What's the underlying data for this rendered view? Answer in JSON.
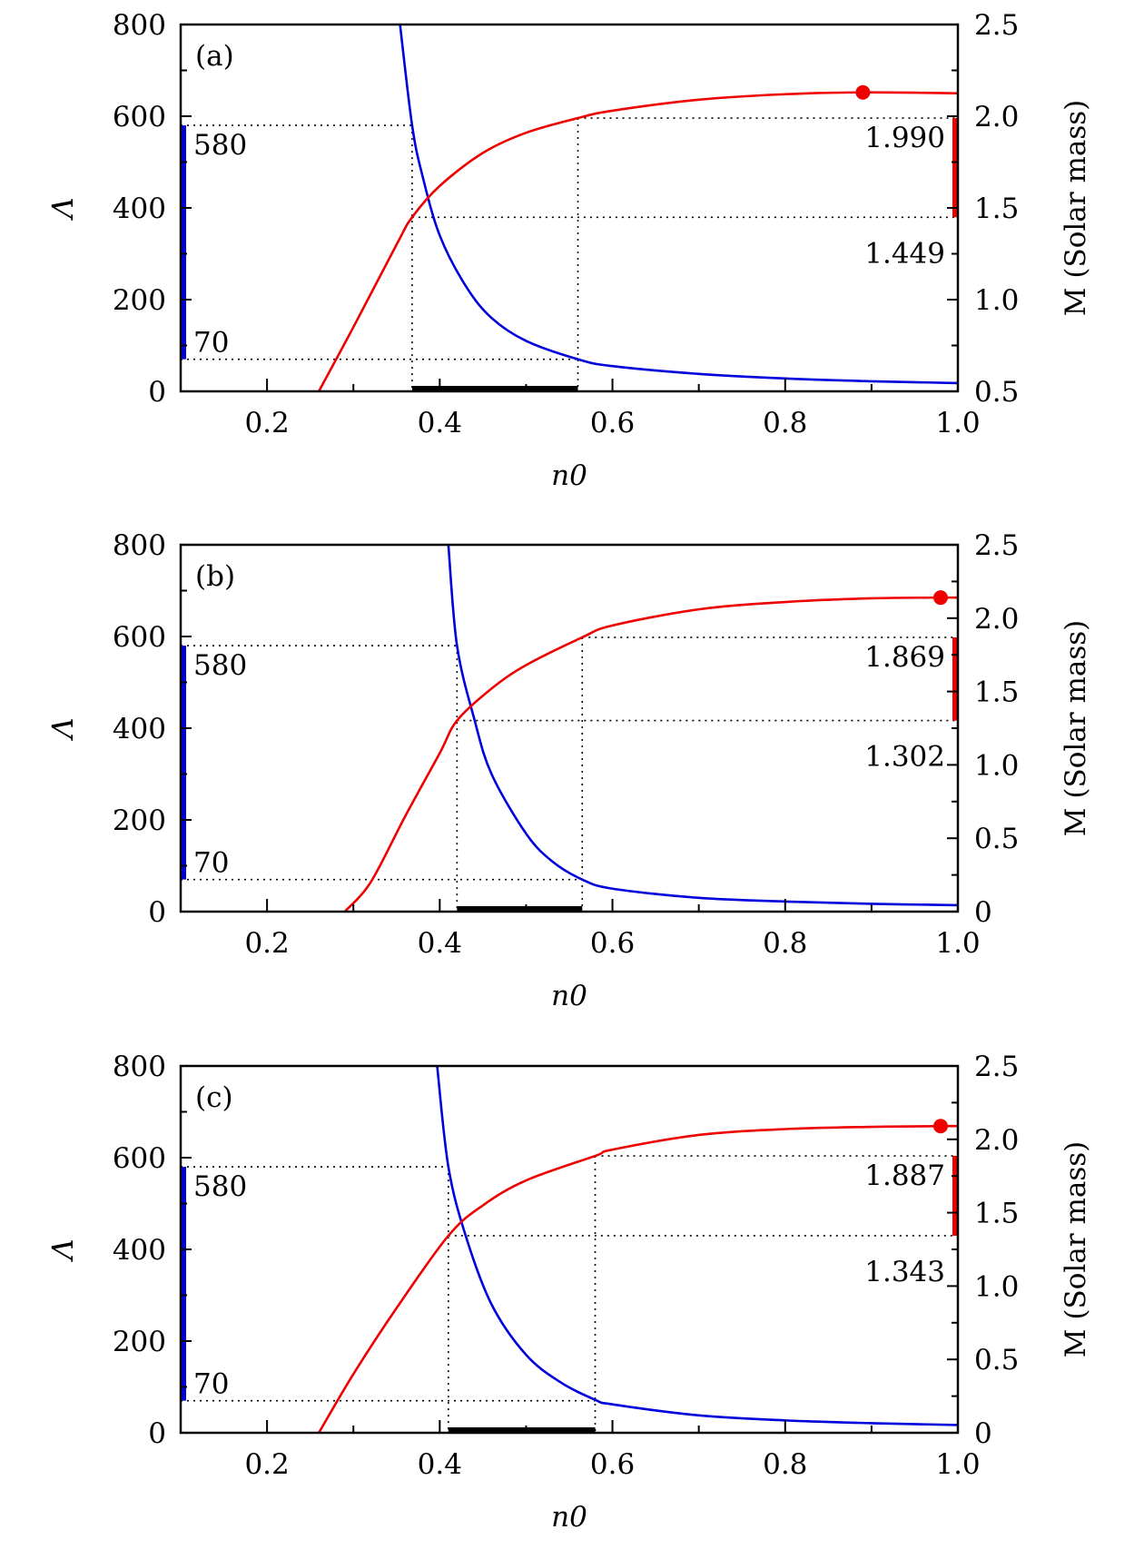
{
  "chart_data": [
    {
      "type": "line",
      "panel_label": "(a)",
      "xlabel": "n0",
      "ylabel_left": "Λ",
      "ylabel_right": "M (Solar mass)",
      "xlim": [
        0.1,
        1.0
      ],
      "ylim_left": [
        0,
        800
      ],
      "ylim_right": [
        0.5,
        2.5
      ],
      "xticks": [
        "0.2",
        "0.4",
        "0.6",
        "0.8",
        "1.0"
      ],
      "yticks_left": [
        "0",
        "200",
        "400",
        "600",
        "800"
      ],
      "yticks_right": [
        "0.5",
        "1.0",
        "1.5",
        "2.0",
        "2.5"
      ],
      "series": [
        {
          "name": "Λ",
          "axis": "left",
          "color": "#0000dd",
          "x": [
            0.354,
            0.368,
            0.38,
            0.4,
            0.43,
            0.46,
            0.5,
            0.56,
            0.6,
            0.7,
            0.8,
            0.9,
            1.0
          ],
          "y": [
            800,
            580,
            470,
            340,
            230,
            160,
            110,
            70,
            55,
            38,
            28,
            22,
            18
          ]
        },
        {
          "name": "M",
          "axis": "right",
          "color": "#ee0000",
          "x": [
            0.26,
            0.3,
            0.35,
            0.368,
            0.4,
            0.45,
            0.5,
            0.56,
            0.6,
            0.7,
            0.8,
            0.89,
            1.0
          ],
          "y": [
            0.5,
            0.85,
            1.3,
            1.449,
            1.62,
            1.8,
            1.91,
            1.99,
            2.03,
            2.09,
            2.12,
            2.13,
            2.125
          ]
        }
      ],
      "max_mass_point": {
        "x": 0.89,
        "y": 2.13
      },
      "lambda_bounds": {
        "low": 70,
        "high": 580,
        "low_label": "70",
        "high_label": "580"
      },
      "mass_bounds": {
        "low": 1.449,
        "high": 1.99,
        "low_label": "1.449",
        "high_label": "1.990"
      },
      "n0_range": [
        0.368,
        0.56
      ]
    },
    {
      "type": "line",
      "panel_label": "(b)",
      "xlabel": "n0",
      "ylabel_left": "Λ",
      "ylabel_right": "M (Solar mass)",
      "xlim": [
        0.1,
        1.0
      ],
      "ylim_left": [
        0,
        800
      ],
      "ylim_right": [
        0,
        2.5
      ],
      "xticks": [
        "0.2",
        "0.4",
        "0.6",
        "0.8",
        "1.0"
      ],
      "yticks_left": [
        "0",
        "200",
        "400",
        "600",
        "800"
      ],
      "yticks_right": [
        "0",
        "0.5",
        "1.0",
        "1.5",
        "2.0",
        "2.5"
      ],
      "series": [
        {
          "name": "Λ",
          "axis": "left",
          "color": "#0000dd",
          "x": [
            0.41,
            0.42,
            0.44,
            0.46,
            0.5,
            0.53,
            0.565,
            0.6,
            0.7,
            0.8,
            0.9,
            1.0
          ],
          "y": [
            800,
            580,
            420,
            300,
            170,
            110,
            70,
            50,
            30,
            22,
            17,
            14
          ]
        },
        {
          "name": "M",
          "axis": "right",
          "color": "#ee0000",
          "x": [
            0.29,
            0.32,
            0.36,
            0.4,
            0.42,
            0.46,
            0.5,
            0.565,
            0.6,
            0.7,
            0.8,
            0.9,
            0.98,
            1.0
          ],
          "y": [
            0,
            0.2,
            0.65,
            1.08,
            1.302,
            1.52,
            1.68,
            1.869,
            1.95,
            2.06,
            2.11,
            2.135,
            2.14,
            2.14
          ]
        }
      ],
      "max_mass_point": {
        "x": 0.98,
        "y": 2.14
      },
      "lambda_bounds": {
        "low": 70,
        "high": 580,
        "low_label": "70",
        "high_label": "580"
      },
      "mass_bounds": {
        "low": 1.302,
        "high": 1.869,
        "low_label": "1.302",
        "high_label": "1.869"
      },
      "n0_range": [
        0.42,
        0.565
      ]
    },
    {
      "type": "line",
      "panel_label": "(c)",
      "xlabel": "n0",
      "ylabel_left": "Λ",
      "ylabel_right": "M (Solar mass)",
      "xlim": [
        0.1,
        1.0
      ],
      "ylim_left": [
        0,
        800
      ],
      "ylim_right": [
        0,
        2.5
      ],
      "xticks": [
        "0.2",
        "0.4",
        "0.6",
        "0.8",
        "1.0"
      ],
      "yticks_left": [
        "0",
        "200",
        "400",
        "600",
        "800"
      ],
      "yticks_right": [
        "0",
        "0.5",
        "1.0",
        "1.5",
        "2.0",
        "2.5"
      ],
      "series": [
        {
          "name": "Λ",
          "axis": "left",
          "color": "#0000dd",
          "x": [
            0.397,
            0.41,
            0.43,
            0.46,
            0.5,
            0.54,
            0.58,
            0.6,
            0.7,
            0.8,
            0.9,
            1.0
          ],
          "y": [
            800,
            580,
            430,
            280,
            170,
            110,
            72,
            62,
            38,
            27,
            21,
            17
          ]
        },
        {
          "name": "M",
          "axis": "right",
          "color": "#ee0000",
          "x": [
            0.26,
            0.3,
            0.35,
            0.41,
            0.45,
            0.5,
            0.58,
            0.6,
            0.7,
            0.8,
            0.9,
            0.98,
            1.0
          ],
          "y": [
            0,
            0.4,
            0.85,
            1.343,
            1.55,
            1.72,
            1.887,
            1.93,
            2.03,
            2.07,
            2.085,
            2.09,
            2.09
          ]
        }
      ],
      "max_mass_point": {
        "x": 0.98,
        "y": 2.09
      },
      "lambda_bounds": {
        "low": 70,
        "high": 580,
        "low_label": "70",
        "high_label": "580"
      },
      "mass_bounds": {
        "low": 1.343,
        "high": 1.887,
        "low_label": "1.343",
        "high_label": "1.887"
      },
      "n0_range": [
        0.41,
        0.58
      ]
    }
  ]
}
